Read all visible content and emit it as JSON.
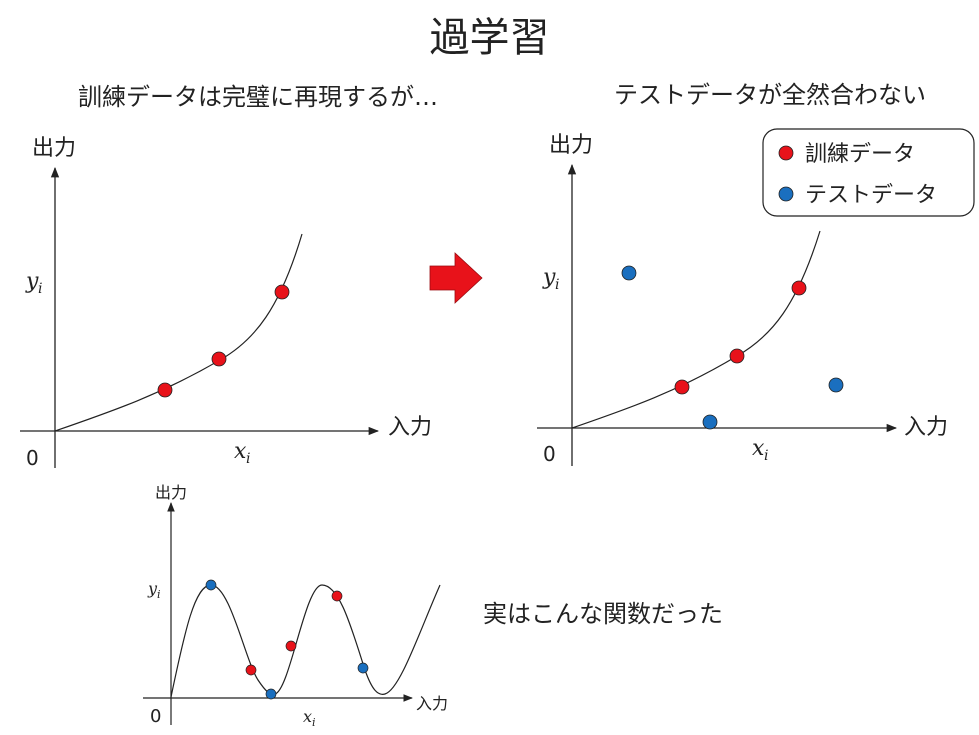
{
  "title": "過学習",
  "subtitle_left": "訓練データは完璧に再現するが…",
  "subtitle_right": "テストデータが全然合わない",
  "bottom_caption": "実はこんな関数だった",
  "axes": {
    "y_label": "出力",
    "x_label": "入力",
    "origin": "0",
    "x_symbol": "x",
    "y_symbol": "y",
    "subscript": "i"
  },
  "legend": {
    "train": "訓練データ",
    "test": "テストデータ"
  },
  "colors": {
    "train": "#e8121a",
    "test": "#1a6fbf",
    "arrow": "#e8121a"
  },
  "icons": {
    "right_arrow": "right-arrow-icon"
  }
}
